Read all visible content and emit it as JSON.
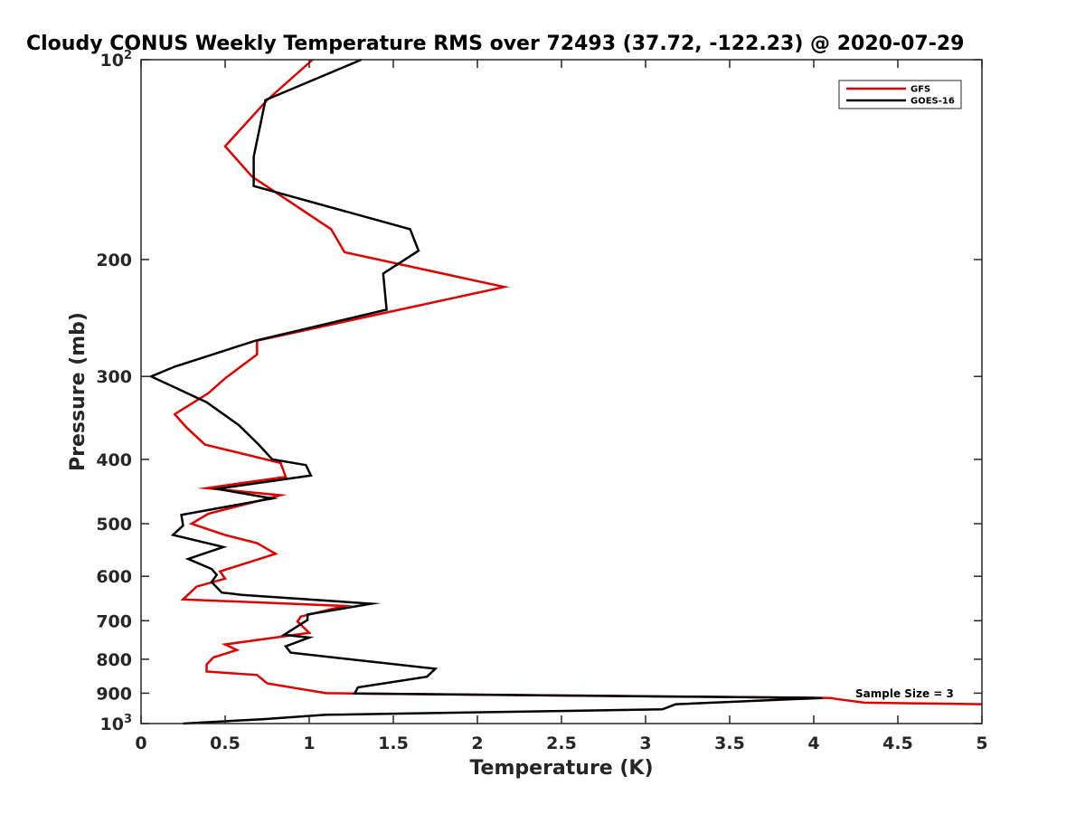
{
  "chart_data": {
    "type": "line",
    "title": "Cloudy CONUS Weekly Temperature RMS over 72493 (37.72, -122.23) @ 2020-07-29",
    "xlabel": "Temperature (K)",
    "ylabel": "Pressure (mb)",
    "xlim": [
      0,
      5
    ],
    "ylim": [
      100,
      1000
    ],
    "y_scale": "log",
    "y_reversed": true,
    "x_ticks": [
      {
        "value": 0,
        "label": "0"
      },
      {
        "value": 0.5,
        "label": "0.5"
      },
      {
        "value": 1,
        "label": "1"
      },
      {
        "value": 1.5,
        "label": "1.5"
      },
      {
        "value": 2,
        "label": "2"
      },
      {
        "value": 2.5,
        "label": "2.5"
      },
      {
        "value": 3,
        "label": "3"
      },
      {
        "value": 3.5,
        "label": "3.5"
      },
      {
        "value": 4,
        "label": "4"
      },
      {
        "value": 4.5,
        "label": "4.5"
      },
      {
        "value": 5,
        "label": "5"
      }
    ],
    "y_ticks": [
      {
        "value": 100,
        "base": "10",
        "exp": "2"
      },
      {
        "value": 200,
        "base": "200",
        "exp": ""
      },
      {
        "value": 300,
        "base": "300",
        "exp": ""
      },
      {
        "value": 400,
        "base": "400",
        "exp": ""
      },
      {
        "value": 500,
        "base": "500",
        "exp": ""
      },
      {
        "value": 600,
        "base": "600",
        "exp": ""
      },
      {
        "value": 700,
        "base": "700",
        "exp": ""
      },
      {
        "value": 800,
        "base": "800",
        "exp": ""
      },
      {
        "value": 900,
        "base": "900",
        "exp": ""
      },
      {
        "value": 1000,
        "base": "10",
        "exp": "3"
      }
    ],
    "grid": false,
    "legend_position": "top-right",
    "annotation": "Sample Size = 3",
    "series": [
      {
        "name": "GFS",
        "color": "#e00000",
        "points": [
          [
            1.02,
            100
          ],
          [
            0.75,
            115
          ],
          [
            0.5,
            135
          ],
          [
            0.66,
            150
          ],
          [
            1.13,
            180
          ],
          [
            1.21,
            195
          ],
          [
            2.16,
            220
          ],
          [
            1.47,
            240
          ],
          [
            0.69,
            265
          ],
          [
            0.69,
            278
          ],
          [
            0.5,
            302
          ],
          [
            0.4,
            318
          ],
          [
            0.2,
            342
          ],
          [
            0.27,
            358
          ],
          [
            0.38,
            380
          ],
          [
            0.83,
            405
          ],
          [
            0.86,
            425
          ],
          [
            0.39,
            442
          ],
          [
            0.83,
            453
          ],
          [
            0.4,
            483
          ],
          [
            0.3,
            500
          ],
          [
            0.5,
            520
          ],
          [
            0.69,
            535
          ],
          [
            0.8,
            555
          ],
          [
            0.47,
            590
          ],
          [
            0.5,
            605
          ],
          [
            0.33,
            622
          ],
          [
            0.25,
            650
          ],
          [
            1.21,
            665
          ],
          [
            0.95,
            690
          ],
          [
            0.93,
            702
          ],
          [
            1.0,
            730
          ],
          [
            0.5,
            760
          ],
          [
            0.57,
            775
          ],
          [
            0.43,
            795
          ],
          [
            0.39,
            815
          ],
          [
            0.39,
            835
          ],
          [
            0.69,
            845
          ],
          [
            0.75,
            870
          ],
          [
            1.1,
            900
          ],
          [
            1.27,
            901
          ],
          [
            4.1,
            915
          ],
          [
            4.13,
            918
          ],
          [
            4.3,
            930
          ],
          [
            5.0,
            935
          ]
        ]
      },
      {
        "name": "GOES-16",
        "color": "#000000",
        "points": [
          [
            1.31,
            100
          ],
          [
            0.74,
            115
          ],
          [
            0.67,
            140
          ],
          [
            0.67,
            155
          ],
          [
            1.6,
            180
          ],
          [
            1.65,
            194
          ],
          [
            1.44,
            210
          ],
          [
            1.46,
            238
          ],
          [
            0.68,
            265
          ],
          [
            0.2,
            290
          ],
          [
            0.06,
            300
          ],
          [
            0.39,
            328
          ],
          [
            0.58,
            355
          ],
          [
            0.7,
            380
          ],
          [
            0.78,
            400
          ],
          [
            0.98,
            408
          ],
          [
            1.01,
            423
          ],
          [
            0.45,
            443
          ],
          [
            0.78,
            458
          ],
          [
            0.24,
            485
          ],
          [
            0.25,
            503
          ],
          [
            0.19,
            520
          ],
          [
            0.49,
            542
          ],
          [
            0.28,
            565
          ],
          [
            0.42,
            585
          ],
          [
            0.45,
            597
          ],
          [
            0.42,
            612
          ],
          [
            0.48,
            635
          ],
          [
            0.6,
            640
          ],
          [
            1.37,
            660
          ],
          [
            0.99,
            685
          ],
          [
            0.99,
            698
          ],
          [
            0.85,
            735
          ],
          [
            1.0,
            742
          ],
          [
            0.86,
            765
          ],
          [
            0.89,
            782
          ],
          [
            1.75,
            827
          ],
          [
            1.7,
            850
          ],
          [
            1.29,
            882
          ],
          [
            1.27,
            901
          ],
          [
            4.05,
            915
          ],
          [
            3.18,
            935
          ],
          [
            3.1,
            952
          ],
          [
            1.1,
            970
          ],
          [
            0.72,
            985
          ],
          [
            0.25,
            1000
          ]
        ]
      }
    ]
  }
}
